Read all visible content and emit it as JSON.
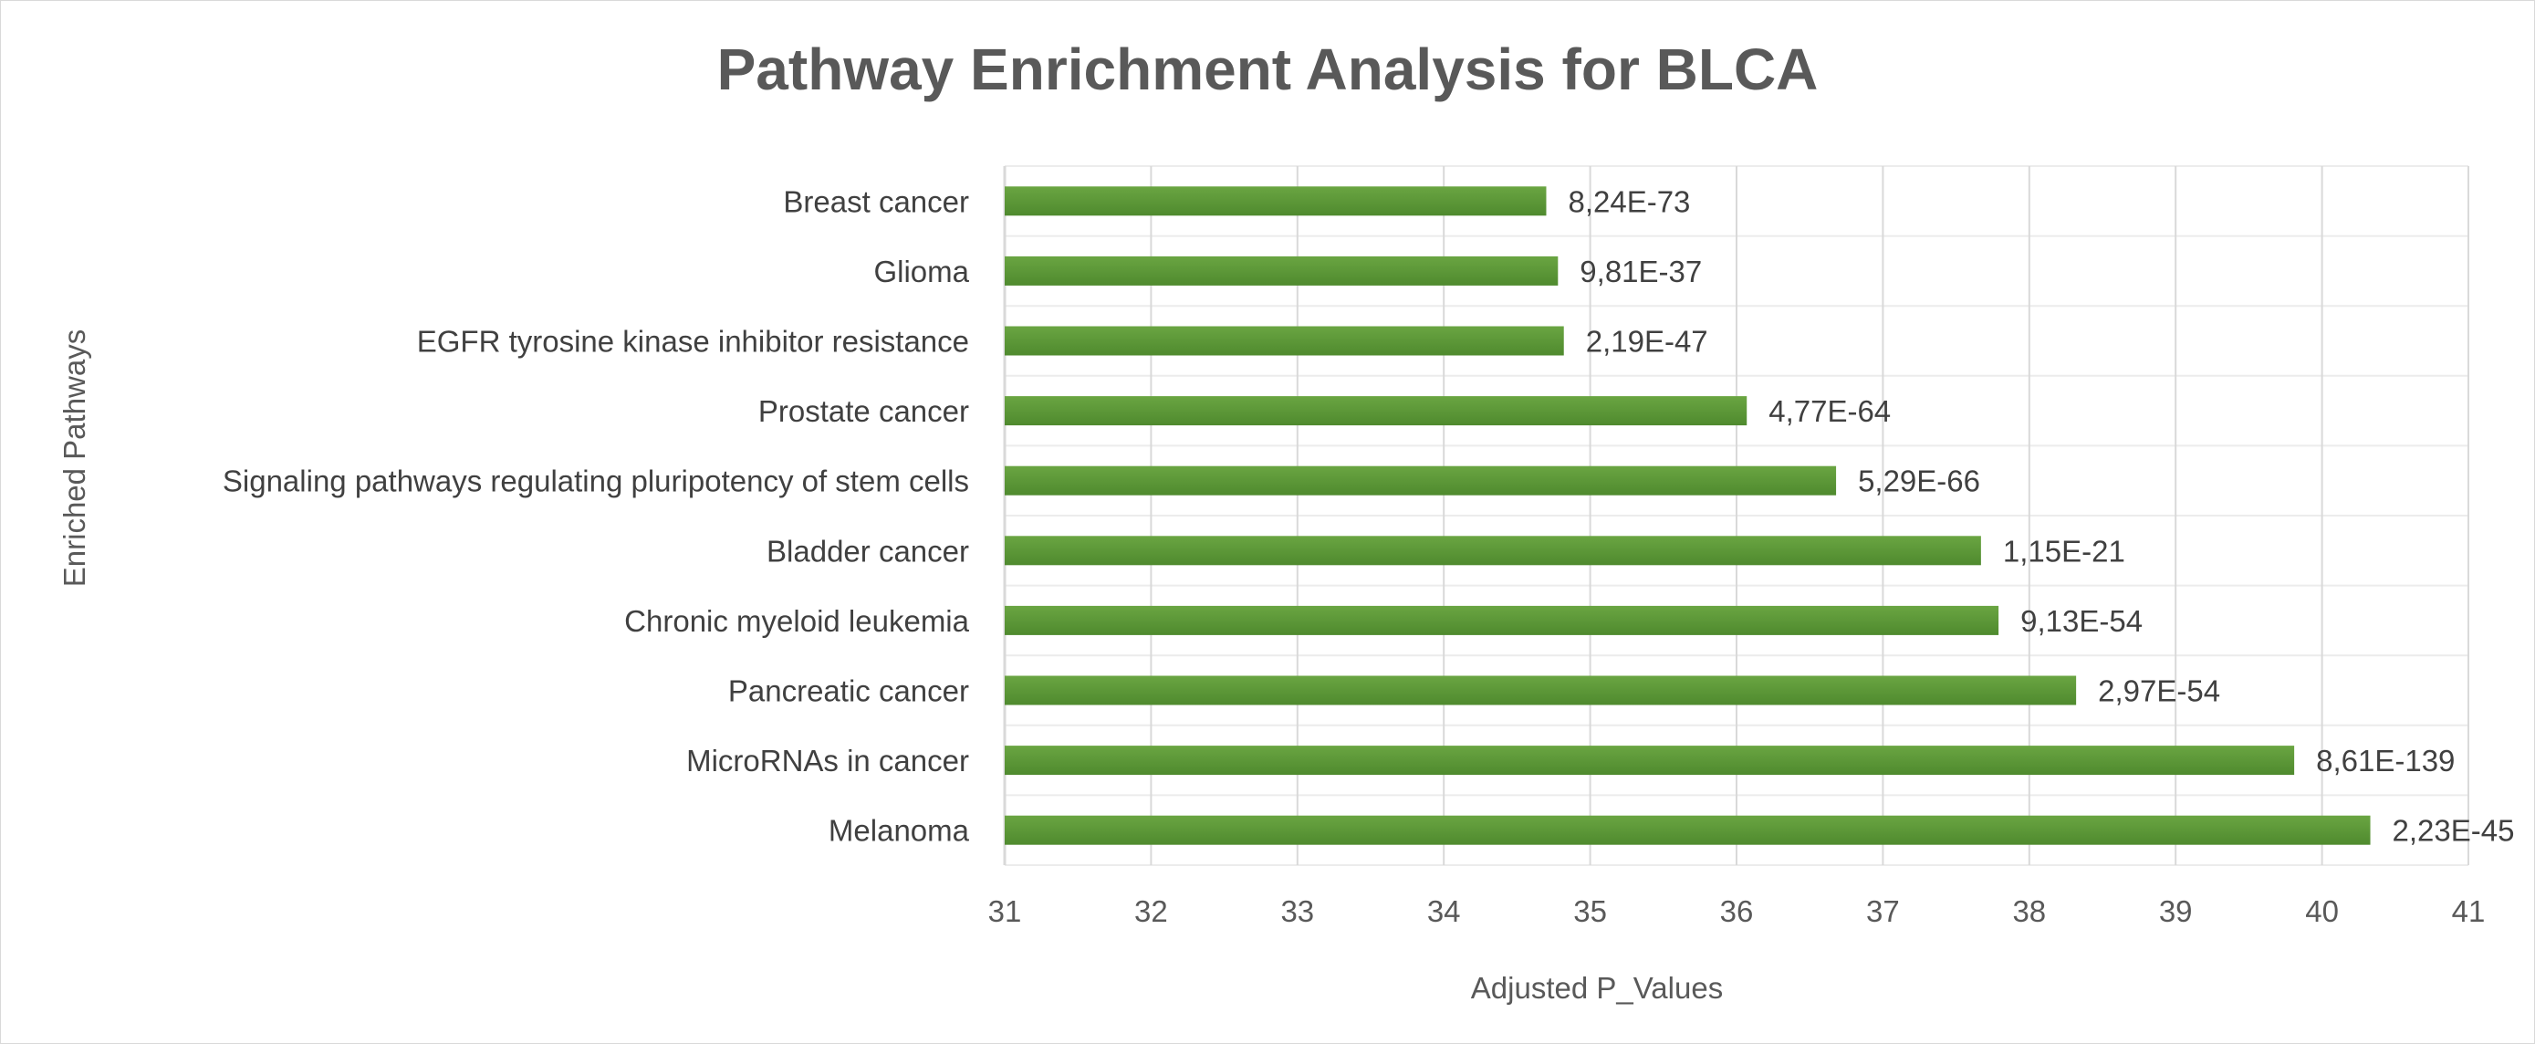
{
  "chart_data": {
    "type": "bar",
    "orientation": "horizontal",
    "title": "Pathway Enrichment Analysis for BLCA",
    "xlabel": "Adjusted P_Values",
    "ylabel": "Enriched Pathways",
    "xlim": [
      31,
      41
    ],
    "xticks": [
      "31",
      "32",
      "33",
      "34",
      "35",
      "36",
      "37",
      "38",
      "39",
      "40",
      "41"
    ],
    "grid": true,
    "legend": "none",
    "bar_color": "#6aa542",
    "bar_color_dark": "#4f8a2e",
    "categories": [
      "Breast cancer",
      "Glioma",
      "EGFR tyrosine kinase inhibitor resistance",
      "Prostate cancer",
      "Signaling pathways regulating pluripotency of stem cells",
      "Bladder cancer",
      "Chronic myeloid leukemia",
      "Pancreatic cancer",
      "MicroRNAs in cancer",
      "Melanoma"
    ],
    "values": [
      34.7,
      34.78,
      34.82,
      36.07,
      36.68,
      37.67,
      37.79,
      38.32,
      39.81,
      40.33
    ],
    "data_labels": [
      "8,24E-73",
      "9,81E-37",
      "2,19E-47",
      "4,77E-64",
      "5,29E-66",
      "1,15E-21",
      "9,13E-54",
      "2,97E-54",
      "8,61E-139",
      "2,23E-45"
    ]
  }
}
